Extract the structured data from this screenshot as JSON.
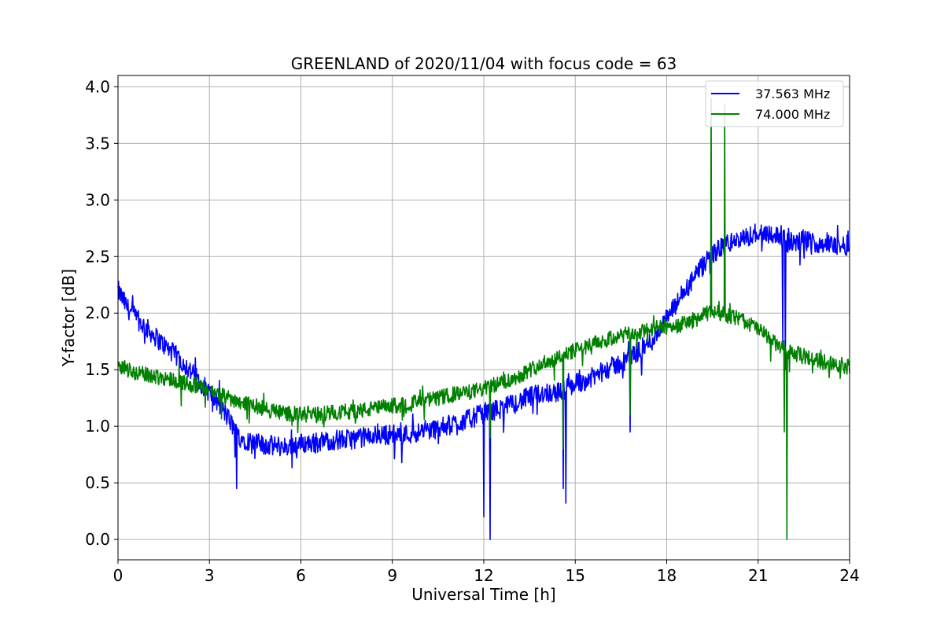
{
  "chart_data": {
    "type": "line",
    "title": "GREENLAND of 2020/11/04 with focus code = 63",
    "xlabel": "Universal Time [h]",
    "ylabel": "Y-factor [dB]",
    "xlim": [
      0,
      24
    ],
    "ylim": [
      -0.18,
      4.1
    ],
    "xticks": [
      0,
      3,
      6,
      9,
      12,
      15,
      18,
      21,
      24
    ],
    "yticks": [
      0.0,
      0.5,
      1.0,
      1.5,
      2.0,
      2.5,
      3.0,
      3.5,
      4.0
    ],
    "xtick_labels": [
      "0",
      "3",
      "6",
      "9",
      "12",
      "15",
      "18",
      "21",
      "24"
    ],
    "ytick_labels": [
      "0.0",
      "0.5",
      "1.0",
      "1.5",
      "2.0",
      "2.5",
      "3.0",
      "3.5",
      "4.0"
    ],
    "grid": true,
    "legend_position": "top-right",
    "series": [
      {
        "name": "37.563 MHz",
        "color": "#0000ff",
        "noise": 0.09,
        "x": [
          0,
          0.3,
          0.6,
          1,
          1.5,
          2,
          2.5,
          3,
          3.5,
          4,
          4.5,
          5,
          5.5,
          6,
          6.5,
          7,
          7.5,
          8,
          8.5,
          9,
          9.5,
          10,
          10.5,
          11,
          11.5,
          12,
          12.5,
          13,
          13.5,
          14,
          14.5,
          15,
          15.5,
          16,
          16.5,
          17,
          17.5,
          18,
          18.5,
          19,
          19.5,
          20,
          20.5,
          21,
          21.5,
          22,
          22.5,
          23,
          23.5,
          24
        ],
        "y": [
          2.2,
          2.05,
          1.95,
          1.85,
          1.72,
          1.6,
          1.45,
          1.3,
          1.12,
          0.9,
          0.85,
          0.83,
          0.82,
          0.85,
          0.85,
          0.88,
          0.88,
          0.9,
          0.92,
          0.93,
          0.93,
          0.96,
          0.98,
          1.02,
          1.06,
          1.12,
          1.15,
          1.2,
          1.26,
          1.3,
          1.3,
          1.38,
          1.42,
          1.5,
          1.56,
          1.65,
          1.75,
          1.95,
          2.15,
          2.35,
          2.52,
          2.62,
          2.65,
          2.72,
          2.7,
          2.62,
          2.64,
          2.62,
          2.6,
          2.6
        ],
        "dips": [
          [
            3.9,
            0.45
          ],
          [
            12.0,
            0.2
          ],
          [
            12.2,
            0.0
          ],
          [
            14.6,
            0.45
          ],
          [
            14.7,
            0.32
          ],
          [
            16.8,
            0.95
          ],
          [
            21.8,
            1.75
          ],
          [
            21.9,
            1.5
          ]
        ]
      },
      {
        "name": "74.000 MHz",
        "color": "#008000",
        "noise": 0.07,
        "x": [
          0,
          0.5,
          1,
          1.5,
          2,
          2.5,
          3,
          3.5,
          4,
          4.5,
          5,
          5.5,
          6,
          6.5,
          7,
          7.5,
          8,
          8.5,
          9,
          9.5,
          10,
          10.5,
          11,
          11.5,
          12,
          12.5,
          13,
          13.5,
          14,
          14.5,
          15,
          15.5,
          16,
          16.5,
          17,
          17.5,
          18,
          18.5,
          19,
          19.5,
          20,
          20.5,
          21,
          21.5,
          22,
          22.5,
          23,
          23.5,
          24
        ],
        "y": [
          1.55,
          1.48,
          1.45,
          1.43,
          1.4,
          1.36,
          1.32,
          1.26,
          1.22,
          1.18,
          1.14,
          1.12,
          1.1,
          1.1,
          1.12,
          1.13,
          1.14,
          1.16,
          1.18,
          1.2,
          1.22,
          1.25,
          1.28,
          1.3,
          1.33,
          1.38,
          1.42,
          1.5,
          1.56,
          1.62,
          1.67,
          1.72,
          1.76,
          1.8,
          1.82,
          1.86,
          1.88,
          1.9,
          1.95,
          2.02,
          1.98,
          1.94,
          1.86,
          1.74,
          1.66,
          1.62,
          1.58,
          1.56,
          1.52
        ],
        "spikes": [
          [
            19.45,
            3.9
          ],
          [
            19.9,
            3.85
          ]
        ],
        "dips": [
          [
            12.2,
            0.9
          ],
          [
            14.6,
            0.8
          ],
          [
            16.8,
            1.1
          ],
          [
            21.85,
            0.95
          ],
          [
            21.95,
            0.0
          ]
        ]
      }
    ]
  }
}
